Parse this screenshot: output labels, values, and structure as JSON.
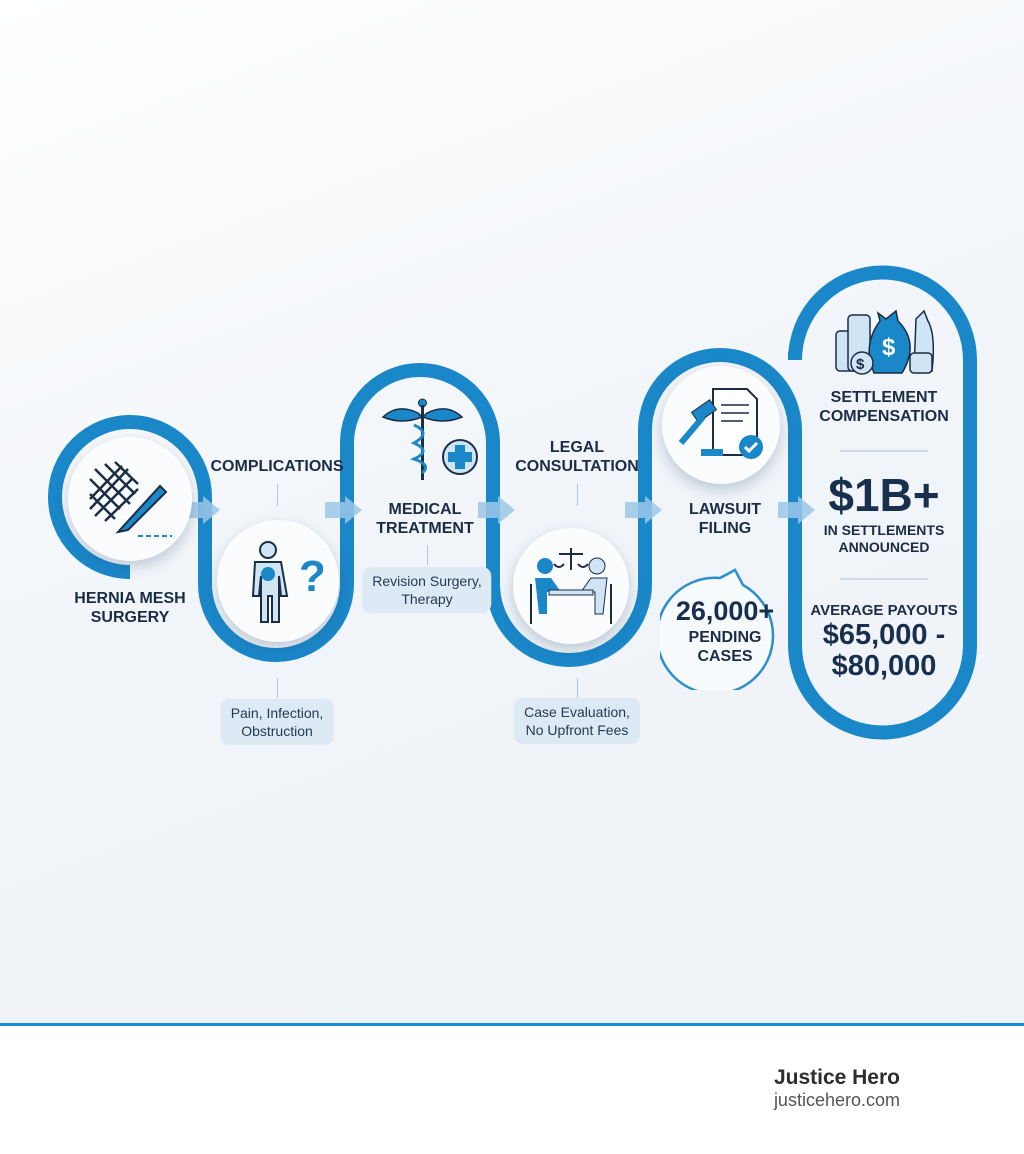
{
  "colors": {
    "accent": "#1a87c9",
    "dark_text": "#1b2d45",
    "pill_bg": "#dde9f4"
  },
  "steps": [
    {
      "title": [
        "HERNIA MESH",
        "SURGERY"
      ],
      "icon": "mesh-scalpel-icon"
    },
    {
      "title": [
        "COMPLICATIONS"
      ],
      "detail": [
        "Pain, Infection,",
        "Obstruction"
      ],
      "icon": "person-pain-question-icon"
    },
    {
      "title": [
        "MEDICAL",
        "TREATMENT"
      ],
      "detail": [
        "Revision Surgery,",
        "Therapy"
      ],
      "icon": "caduceus-medical-cross-icon"
    },
    {
      "title": [
        "LEGAL",
        "CONSULTATION"
      ],
      "detail": [
        "Case Evaluation,",
        "No Upfront Fees"
      ],
      "icon": "lawyer-client-scales-icon"
    },
    {
      "title": [
        "LAWSUIT",
        "FILING"
      ],
      "icon": "gavel-document-check-icon",
      "stat": {
        "value": "26,000+",
        "label": [
          "PENDING",
          "CASES"
        ]
      }
    }
  ],
  "settlement": {
    "icon": "money-bags-coins-icon",
    "title": [
      "SETTLEMENT",
      "COMPENSATION"
    ],
    "total": "$1B+",
    "total_label": [
      "IN SETTLEMENTS",
      "ANNOUNCED"
    ],
    "avg_label": "AVERAGE PAYOUTS",
    "avg_range": [
      "$65,000 -",
      "$80,000"
    ]
  },
  "footer": {
    "brand": "Justice Hero",
    "url": "justicehero.com"
  }
}
